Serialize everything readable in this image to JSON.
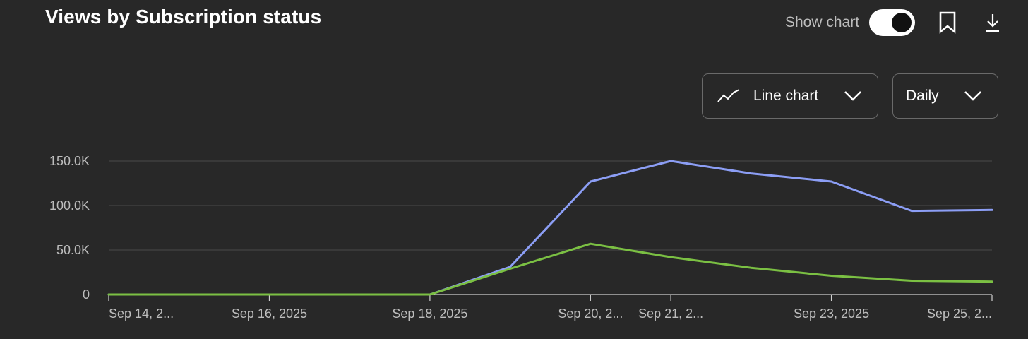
{
  "header": {
    "title": "Views by Subscription status",
    "show_chart_label": "Show chart",
    "show_chart_on": true
  },
  "controls": {
    "chart_type_label": "Line chart",
    "interval_label": "Daily"
  },
  "icons": {
    "chart_type": "line-chart-icon",
    "bookmark": "bookmark-icon",
    "download": "download-icon",
    "chevron": "chevron-down-icon"
  },
  "colors": {
    "background": "#282828",
    "series_1": "#8c9ef5",
    "series_2": "#7bc043",
    "grid": "#4a4a4a",
    "tick_text": "#bdbdbd"
  },
  "chart_data": {
    "type": "line",
    "title": "Views by Subscription status",
    "xlabel": "",
    "ylabel": "",
    "x": [
      "2025-09-14",
      "2025-09-15",
      "2025-09-16",
      "2025-09-17",
      "2025-09-18",
      "2025-09-19",
      "2025-09-20",
      "2025-09-21",
      "2025-09-22",
      "2025-09-23",
      "2025-09-24",
      "2025-09-25"
    ],
    "x_tick_labels": [
      {
        "date": "2025-09-14",
        "label": "Sep 14, 2..."
      },
      {
        "date": "2025-09-16",
        "label": "Sep 16, 2025"
      },
      {
        "date": "2025-09-18",
        "label": "Sep 18, 2025"
      },
      {
        "date": "2025-09-20",
        "label": "Sep 20, 2..."
      },
      {
        "date": "2025-09-21",
        "label": "Sep 21, 2..."
      },
      {
        "date": "2025-09-23",
        "label": "Sep 23, 2025"
      },
      {
        "date": "2025-09-25",
        "label": "Sep 25, 2..."
      }
    ],
    "y_ticks": [
      0,
      50000,
      100000,
      150000
    ],
    "y_tick_labels": [
      "0",
      "50.0K",
      "100.0K",
      "150.0K"
    ],
    "ylim": [
      0,
      150000
    ],
    "grid": true,
    "series": [
      {
        "values": [
          0,
          0,
          0,
          0,
          0,
          31000,
          127000,
          150000,
          136000,
          127000,
          94000,
          95000
        ]
      },
      {
        "values": [
          0,
          0,
          0,
          0,
          0,
          29000,
          57000,
          42000,
          30000,
          21000,
          15500,
          14500
        ]
      }
    ]
  }
}
